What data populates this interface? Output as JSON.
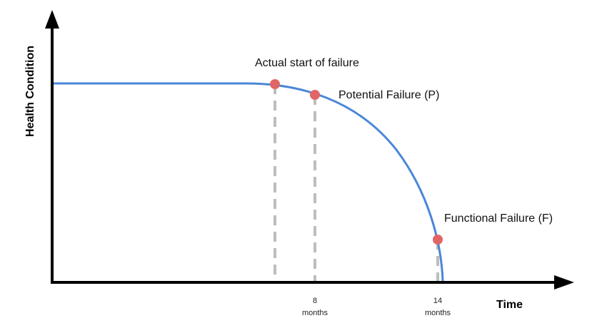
{
  "colors": {
    "curve": "#4a86d8",
    "point": "#e06666",
    "dash": "#bdbdbd",
    "axis": "#000000"
  },
  "axes": {
    "y_title": "Health Condition",
    "x_title": "Time"
  },
  "ticks": [
    {
      "value": "8",
      "unit": "months"
    },
    {
      "value": "14",
      "unit": "months"
    }
  ],
  "points": [
    {
      "label": "Actual start of failure"
    },
    {
      "label": "Potential Failure (P)"
    },
    {
      "label": "Functional Failure (F)"
    }
  ]
}
